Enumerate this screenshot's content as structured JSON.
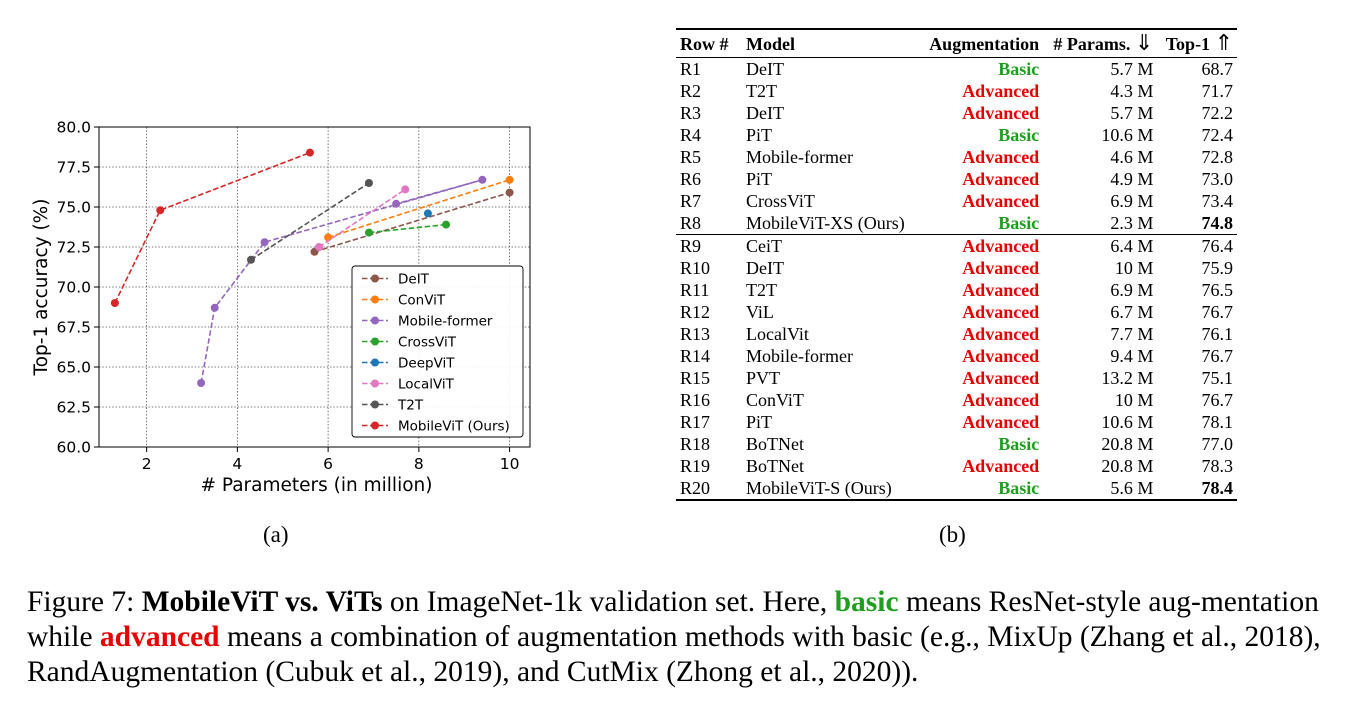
{
  "panel_a_label": "(a)",
  "panel_b_label": "(b)",
  "colors": {
    "basic": "#1f9e1f",
    "advanced": "#e60000"
  },
  "chart_data": {
    "type": "line",
    "xlabel": "# Parameters (in million)",
    "ylabel": "Top-1 accuracy (%)",
    "xlim": [
      0.95,
      10.45
    ],
    "ylim": [
      60.0,
      80.0
    ],
    "xticks": [
      2,
      4,
      6,
      8,
      10
    ],
    "xtick_labels": [
      "2",
      "4",
      "6",
      "8",
      "10"
    ],
    "yticks": [
      60.0,
      62.5,
      65.0,
      67.5,
      70.0,
      72.5,
      75.0,
      77.5,
      80.0
    ],
    "ytick_labels": [
      "60.0",
      "62.5",
      "65.0",
      "67.5",
      "70.0",
      "72.5",
      "75.0",
      "77.5",
      "80.0"
    ],
    "grid": true,
    "legend_position": "lower-right",
    "series": [
      {
        "name": "DeIT",
        "color": "#8c564b",
        "points": [
          [
            5.7,
            72.2
          ],
          [
            10.0,
            75.9
          ]
        ]
      },
      {
        "name": "ConViT",
        "color": "#ff7f0e",
        "points": [
          [
            6.0,
            73.1
          ],
          [
            10.0,
            76.7
          ]
        ]
      },
      {
        "name": "Mobile-former",
        "color": "#9467bd",
        "points": [
          [
            3.2,
            64.0
          ],
          [
            3.5,
            68.7
          ],
          [
            4.6,
            72.8
          ],
          [
            9.4,
            76.7
          ],
          [
            7.5,
            75.2
          ]
        ]
      },
      {
        "name": "CrossViT",
        "color": "#2ca02c",
        "points": [
          [
            6.9,
            73.4
          ],
          [
            8.6,
            73.9
          ]
        ]
      },
      {
        "name": "DeepViT",
        "color": "#1f77b4",
        "points": [
          [
            8.2,
            74.6
          ]
        ]
      },
      {
        "name": "LocalViT",
        "color": "#e377c2",
        "points": [
          [
            5.8,
            72.5
          ],
          [
            7.7,
            76.1
          ]
        ]
      },
      {
        "name": "T2T",
        "color": "#555555",
        "points": [
          [
            4.3,
            71.7
          ],
          [
            6.9,
            76.5
          ]
        ]
      },
      {
        "name": "MobileViT (Ours)",
        "color": "#d62728",
        "points": [
          [
            1.3,
            69.0
          ],
          [
            2.3,
            74.8
          ],
          [
            5.6,
            78.4
          ]
        ]
      }
    ]
  },
  "table": {
    "headers": {
      "row": "Row #",
      "model": "Model",
      "aug": "Augmentation",
      "params": "# Params.",
      "params_arrow": "⇓",
      "top1": "Top-1",
      "top1_arrow": "⇑"
    },
    "rows": [
      {
        "row": "R1",
        "model": "DeIT",
        "aug": "Basic",
        "params": "5.7 M",
        "top1": "68.7"
      },
      {
        "row": "R2",
        "model": "T2T",
        "aug": "Advanced",
        "params": "4.3 M",
        "top1": "71.7"
      },
      {
        "row": "R3",
        "model": "DeIT",
        "aug": "Advanced",
        "params": "5.7 M",
        "top1": "72.2"
      },
      {
        "row": "R4",
        "model": "PiT",
        "aug": "Basic",
        "params": "10.6 M",
        "top1": "72.4"
      },
      {
        "row": "R5",
        "model": "Mobile-former",
        "aug": "Advanced",
        "params": "4.6 M",
        "top1": "72.8"
      },
      {
        "row": "R6",
        "model": "PiT",
        "aug": "Advanced",
        "params": "4.9 M",
        "top1": "73.0"
      },
      {
        "row": "R7",
        "model": "CrossViT",
        "aug": "Advanced",
        "params": "6.9 M",
        "top1": "73.4"
      },
      {
        "row": "R8",
        "model": "MobileViT-XS (Ours)",
        "aug": "Basic",
        "params": "2.3 M",
        "top1": "74.8",
        "bold": true
      },
      {
        "row": "R9",
        "model": "CeiT",
        "aug": "Advanced",
        "params": "6.4 M",
        "top1": "76.4",
        "sep": true
      },
      {
        "row": "R10",
        "model": "DeIT",
        "aug": "Advanced",
        "params": "10 M",
        "top1": "75.9"
      },
      {
        "row": "R11",
        "model": "T2T",
        "aug": "Advanced",
        "params": "6.9 M",
        "top1": "76.5"
      },
      {
        "row": "R12",
        "model": "ViL",
        "aug": "Advanced",
        "params": "6.7 M",
        "top1": "76.7"
      },
      {
        "row": "R13",
        "model": "LocalVit",
        "aug": "Advanced",
        "params": "7.7 M",
        "top1": "76.1"
      },
      {
        "row": "R14",
        "model": "Mobile-former",
        "aug": "Advanced",
        "params": "9.4 M",
        "top1": "76.7"
      },
      {
        "row": "R15",
        "model": "PVT",
        "aug": "Advanced",
        "params": "13.2 M",
        "top1": "75.1"
      },
      {
        "row": "R16",
        "model": "ConViT",
        "aug": "Advanced",
        "params": "10 M",
        "top1": "76.7"
      },
      {
        "row": "R17",
        "model": "PiT",
        "aug": "Advanced",
        "params": "10.6 M",
        "top1": "78.1"
      },
      {
        "row": "R18",
        "model": "BoTNet",
        "aug": "Basic",
        "params": "20.8 M",
        "top1": "77.0"
      },
      {
        "row": "R19",
        "model": "BoTNet",
        "aug": "Advanced",
        "params": "20.8 M",
        "top1": "78.3"
      },
      {
        "row": "R20",
        "model": "MobileViT-S (Ours)",
        "aug": "Basic",
        "params": "5.6 M",
        "top1": "78.4",
        "bold": true
      }
    ]
  },
  "caption": {
    "prefix": "Figure 7: ",
    "title": "MobileViT vs. ViTs",
    "part1": " on ImageNet-1k validation set. Here, ",
    "basic": "basic",
    "part2": " means ResNet-style aug-mentation while ",
    "advanced": "advanced",
    "part3": " means a combination of augmentation methods with basic (e.g., MixUp (Zhang et al., 2018), RandAugmentation (Cubuk et al., 2019), and CutMix (Zhong et al., 2020))."
  }
}
